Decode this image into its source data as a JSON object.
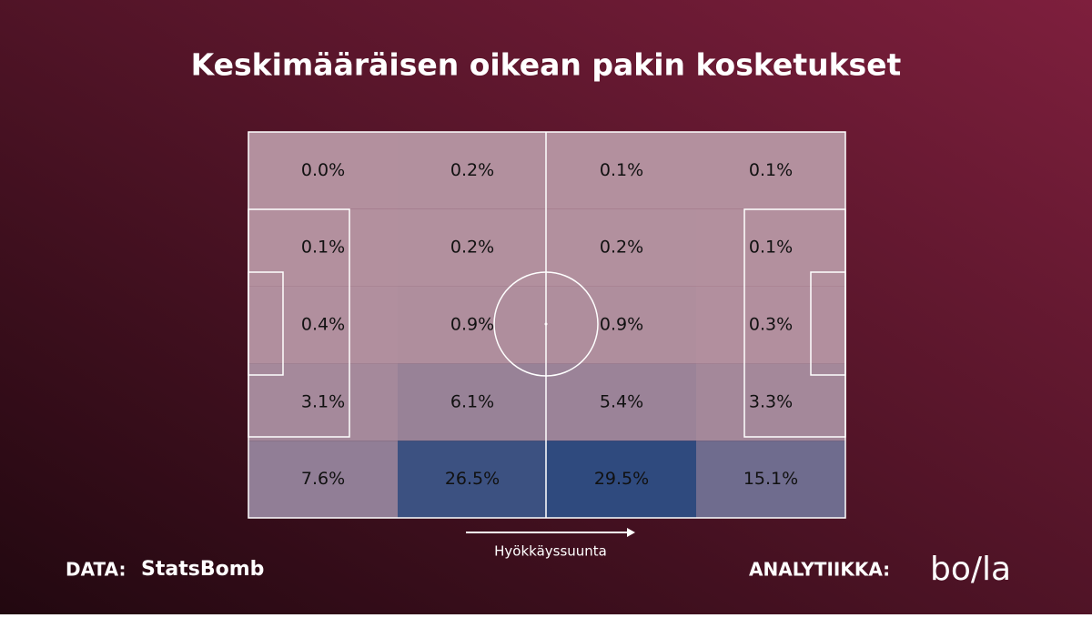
{
  "chart_data": {
    "type": "heatmap",
    "title": "Keskimääräisen oikean pakin kosketukset",
    "values": [
      [
        0.0,
        0.2,
        0.1,
        0.1
      ],
      [
        0.1,
        0.2,
        0.2,
        0.1
      ],
      [
        0.4,
        0.9,
        0.9,
        0.3
      ],
      [
        3.1,
        6.1,
        5.4,
        3.3
      ],
      [
        7.6,
        26.5,
        29.5,
        15.1
      ]
    ],
    "value_labels": [
      [
        "0.0%",
        "0.2%",
        "0.1%",
        "0.1%"
      ],
      [
        "0.1%",
        "0.2%",
        "0.2%",
        "0.1%"
      ],
      [
        "0.4%",
        "0.9%",
        "0.9%",
        "0.3%"
      ],
      [
        "3.1%",
        "6.1%",
        "5.4%",
        "3.3%"
      ],
      [
        "7.6%",
        "26.5%",
        "29.5%",
        "15.1%"
      ]
    ],
    "color_scale": [
      "#b3909e",
      "#2f4a7e"
    ],
    "direction_label": "Hyökkäyssuunta"
  },
  "footer": {
    "data_label": "DATA:",
    "data_source": "StatsBomb",
    "analysis_label": "ANALYTIIKKA:",
    "analysis_source": "bo/la"
  }
}
